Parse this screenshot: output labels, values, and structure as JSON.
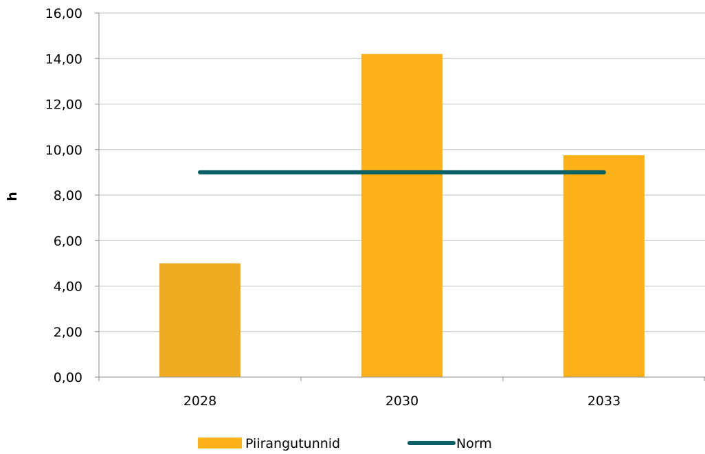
{
  "chart_data": {
    "type": "bar",
    "title": "",
    "xlabel": "",
    "ylabel": "h",
    "categories": [
      "2028",
      "2030",
      "2033"
    ],
    "series": [
      {
        "name": "Piirangutunnid",
        "kind": "bar",
        "values": [
          5.0,
          14.2,
          9.75
        ],
        "colors": [
          "#efab22",
          "#fcb119",
          "#fcb119"
        ]
      },
      {
        "name": "Norm",
        "kind": "line",
        "values": [
          9.0,
          9.0,
          9.0
        ],
        "color": "#0b6068"
      }
    ],
    "ylim": [
      0,
      16
    ],
    "yticks": [
      "0,00",
      "2,00",
      "4,00",
      "6,00",
      "8,00",
      "10,00",
      "12,00",
      "14,00",
      "16,00"
    ],
    "grid": true,
    "legend_position": "bottom"
  }
}
